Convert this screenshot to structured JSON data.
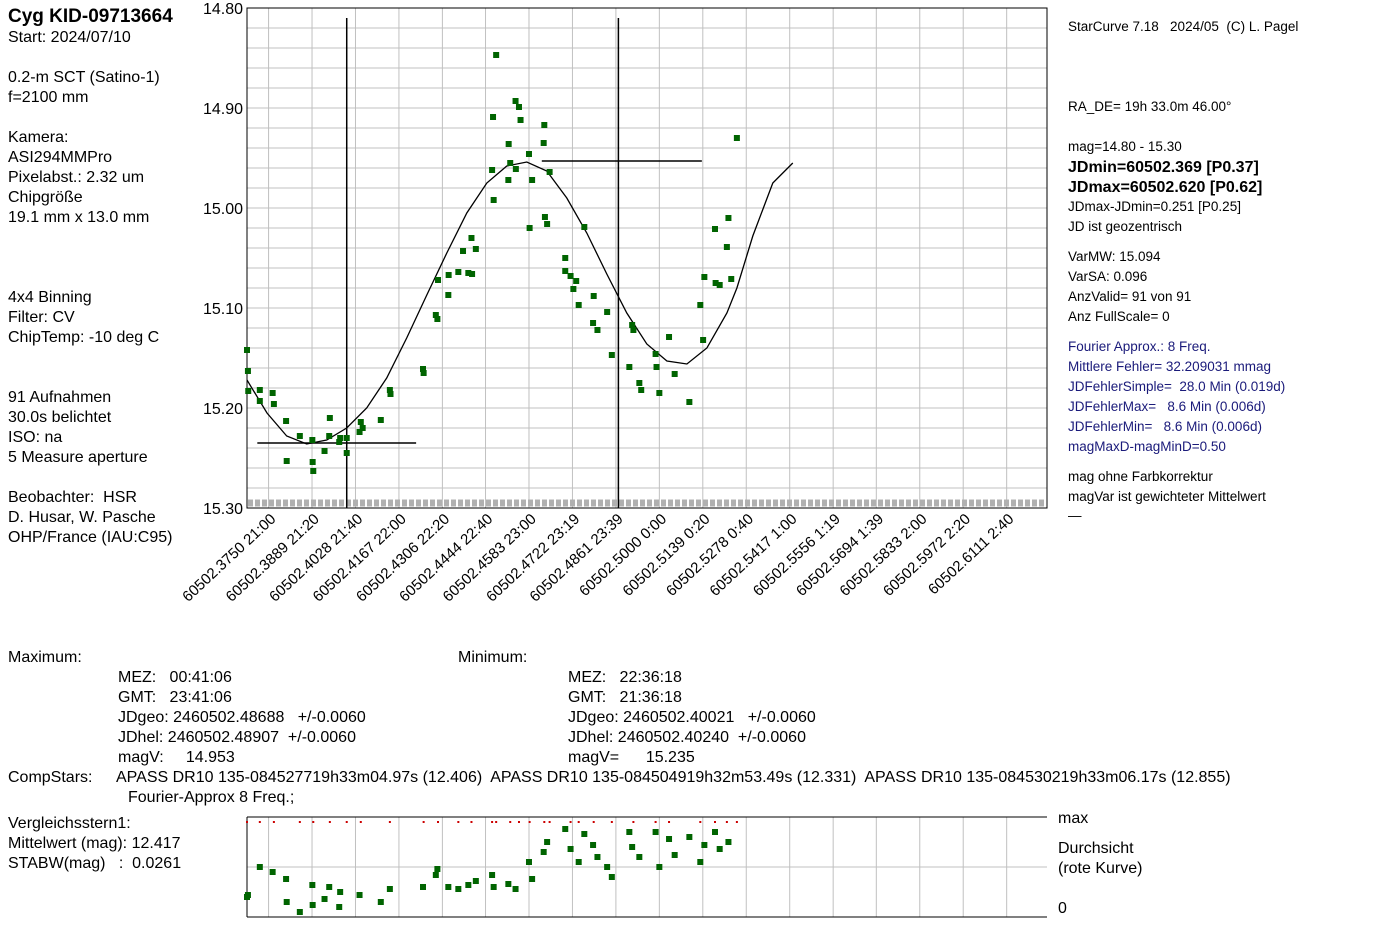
{
  "left_panel": {
    "title": "Cyg KID-09713664",
    "lines": [
      "Start: 2024/07/10",
      "",
      "0.2-m SCT (Satino-1)",
      "f=2100 mm",
      "",
      "Kamera:",
      "ASI294MMPro",
      "Pixelabst.: 2.32 um",
      "Chipgröße",
      "19.1 mm x 13.0 mm",
      "",
      "",
      "",
      "4x4 Binning",
      "Filter: CV",
      "ChipTemp: -10 deg C",
      "",
      "",
      "91 Aufnahmen",
      "30.0s belichtet",
      "ISO: na",
      "5 Measure aperture",
      "",
      "Beobachter:  HSR",
      "D. Husar, W. Pasche",
      "OHP/France (IAU:C95)"
    ]
  },
  "right_panel": {
    "header": "StarCurve 7.18   2024/05  (C) L. Pagel",
    "radec": "RA_DE= 19h 33.0m 46.00°",
    "mag_range": "mag=14.80 - 15.30",
    "jdmin": "JDmin=60502.369 [P0.37]",
    "jdmax": "JDmax=60502.620 [P0.62]",
    "jddiff": "JDmax-JDmin=0.251 [P0.25]",
    "jdgeo": "JD ist geozentrisch",
    "varmw": "VarMW: 15.094",
    "varsa": "VarSA: 0.096",
    "anzvalid": "AnzValid= 91 von 91",
    "anzfull": "Anz FullScale= 0",
    "fourier": "Fourier Approx.: 8 Freq.",
    "mittlere": "Mittlere Fehler= 32.209031 mmag",
    "jdfs": "JDFehlerSimple=  28.0 Min (0.019d)",
    "jdfmax": "JDFehlerMax=   8.6 Min (0.006d)",
    "jdfmin": "JDFehlerMin=   8.6 Min (0.006d)",
    "magmax": "magMaxD-magMinD=0.50",
    "farb": "mag ohne Farbkorrektur",
    "mag_gew": "magVar ist gewichteter Mittelwert",
    "dash": "—"
  },
  "maximum": {
    "label": "Maximum:",
    "mez": "MEZ:   00:41:06",
    "gmt": "GMT:   23:41:06",
    "jdgeo": "JDgeo: 2460502.48688   +/-0.0060",
    "jdhel": "JDhel: 2460502.48907  +/-0.0060",
    "magv": "magV:     14.953"
  },
  "minimum": {
    "label": "Minimum:",
    "mez": "MEZ:   22:36:18",
    "gmt": "GMT:   21:36:18",
    "jdgeo": "JDgeo: 2460502.40021   +/-0.0060",
    "jdhel": "JDhel: 2460502.40240  +/-0.0060",
    "magv": "magV=      15.235"
  },
  "compstars": {
    "label": "CompStars:",
    "text": "APASS DR10 135-084527719h33m04.97s (12.406)  APASS DR10 135-084504919h32m53.49s (12.331)  APASS DR10 135-084530219h33m06.17s (12.855)",
    "fourier": "Fourier-Approx 8 Freq.;"
  },
  "vergleich": {
    "line1": "Vergleichsstern1:",
    "line2": "Mittelwert (mag): 12.417",
    "line3": "STABW(mag)   :  0.0261"
  },
  "lower_labels": {
    "max": "max",
    "durchsicht": "Durchsicht",
    "rote": "(rote Kurve)",
    "zero": "0"
  },
  "colors": {
    "points": "#006400",
    "grid": "#c0c0c0",
    "red": "#cc0000"
  },
  "chart_data": {
    "type": "scatter",
    "y_inverted": true,
    "ylim": [
      14.8,
      15.3
    ],
    "xlim": [
      60502.3681,
      60502.624
    ],
    "y_ticks": [
      "14.80",
      "14.90",
      "15.00",
      "15.10",
      "15.20",
      "15.30"
    ],
    "x_tick_labels": [
      "60502.3750  21:00",
      "60502.3889  21:20",
      "60502.4028  21:40",
      "60502.4167  22:00",
      "60502.4306  22:20",
      "60502.4444  22:40",
      "60502.4583  23:00",
      "60502.4722  23:19",
      "60502.4861  23:39",
      "60502.5000   0:00",
      "60502.5139   0:20",
      "60502.5278   0:40",
      "60502.5417   1:00",
      "60502.5556   1:19",
      "60502.5694   1:39",
      "60502.5833   2:00",
      "60502.5972   2:20",
      "60502.6111   2:40"
    ],
    "x_tick_values": [
      60502.375,
      60502.3889,
      60502.4028,
      60502.4167,
      60502.4306,
      60502.4444,
      60502.4583,
      60502.4722,
      60502.4861,
      60502.5,
      60502.5139,
      60502.5278,
      60502.5417,
      60502.5556,
      60502.5694,
      60502.5833,
      60502.5972,
      60502.6111
    ],
    "extremes": {
      "min": {
        "jd": 60502.4,
        "mag": 15.235,
        "hbar": [
          60502.3714,
          60502.4222
        ]
      },
      "max": {
        "jd": 60502.4869,
        "mag": 14.953,
        "hbar": [
          60502.4624,
          60502.5136
        ]
      }
    },
    "points": [
      [
        60502.3681,
        15.142
      ],
      [
        60502.3684,
        15.163
      ],
      [
        60502.3685,
        15.183
      ],
      [
        60502.3722,
        15.182
      ],
      [
        60502.3722,
        15.193
      ],
      [
        60502.3763,
        15.185
      ],
      [
        60502.3767,
        15.196
      ],
      [
        60502.3806,
        15.213
      ],
      [
        60502.3808,
        15.253
      ],
      [
        60502.385,
        15.228
      ],
      [
        60502.389,
        15.232
      ],
      [
        60502.3891,
        15.254
      ],
      [
        60502.3893,
        15.263
      ],
      [
        60502.3929,
        15.243
      ],
      [
        60502.3944,
        15.228
      ],
      [
        60502.3946,
        15.21
      ],
      [
        60502.3976,
        15.234
      ],
      [
        60502.3979,
        15.23
      ],
      [
        60502.4,
        15.23
      ],
      [
        60502.4,
        15.245
      ],
      [
        60502.4041,
        15.224
      ],
      [
        60502.4045,
        15.214
      ],
      [
        60502.4051,
        15.22
      ],
      [
        60502.4109,
        15.212
      ],
      [
        60502.4138,
        15.182
      ],
      [
        60502.414,
        15.186
      ],
      [
        60502.4244,
        15.161
      ],
      [
        60502.4246,
        15.165
      ],
      [
        60502.4285,
        15.107
      ],
      [
        60502.429,
        15.111
      ],
      [
        60502.4292,
        15.072
      ],
      [
        60502.4325,
        15.087
      ],
      [
        60502.4326,
        15.067
      ],
      [
        60502.4357,
        15.064
      ],
      [
        60502.4372,
        15.043
      ],
      [
        60502.4389,
        15.065
      ],
      [
        60502.4399,
        15.03
      ],
      [
        60502.4401,
        15.066
      ],
      [
        60502.4413,
        15.041
      ],
      [
        60502.4465,
        14.962
      ],
      [
        60502.4468,
        14.909
      ],
      [
        60502.447,
        14.992
      ],
      [
        60502.4478,
        14.847
      ],
      [
        60502.4517,
        14.972
      ],
      [
        60502.4518,
        14.936
      ],
      [
        60502.4523,
        14.955
      ],
      [
        60502.454,
        14.893
      ],
      [
        60502.4541,
        14.961
      ],
      [
        60502.4551,
        14.899
      ],
      [
        60502.4556,
        14.912
      ],
      [
        60502.4583,
        14.946
      ],
      [
        60502.4585,
        15.02
      ],
      [
        60502.4593,
        14.972
      ],
      [
        60502.463,
        14.935
      ],
      [
        60502.4632,
        14.917
      ],
      [
        60502.4634,
        15.009
      ],
      [
        60502.4641,
        15.016
      ],
      [
        60502.4649,
        14.964
      ],
      [
        60502.4699,
        15.05
      ],
      [
        60502.4699,
        15.063
      ],
      [
        60502.4716,
        15.068
      ],
      [
        60502.4725,
        15.081
      ],
      [
        60502.4734,
        15.073
      ],
      [
        60502.4742,
        15.097
      ],
      [
        60502.476,
        15.019
      ],
      [
        60502.4788,
        15.115
      ],
      [
        60502.479,
        15.088
      ],
      [
        60502.4802,
        15.122
      ],
      [
        60502.4833,
        15.104
      ],
      [
        60502.4848,
        15.147
      ],
      [
        60502.4904,
        15.159
      ],
      [
        60502.4913,
        15.117
      ],
      [
        60502.4917,
        15.122
      ],
      [
        60502.4936,
        15.175
      ],
      [
        60502.4942,
        15.182
      ],
      [
        60502.4988,
        15.146
      ],
      [
        60502.4991,
        15.159
      ],
      [
        60502.5,
        15.185
      ],
      [
        60502.5031,
        15.129
      ],
      [
        60502.5049,
        15.166
      ],
      [
        60502.5096,
        15.194
      ],
      [
        60502.5131,
        15.097
      ],
      [
        60502.514,
        15.132
      ],
      [
        60502.5144,
        15.069
      ],
      [
        60502.5178,
        15.021
      ],
      [
        60502.518,
        15.075
      ],
      [
        60502.5193,
        15.077
      ],
      [
        60502.5216,
        15.039
      ],
      [
        60502.5221,
        15.01
      ],
      [
        60502.523,
        15.071
      ],
      [
        60502.5248,
        14.93
      ]
    ],
    "curve_points": [
      [
        60502.3681,
        15.172
      ],
      [
        60502.3745,
        15.205
      ],
      [
        60502.3808,
        15.228
      ],
      [
        60502.3872,
        15.236
      ],
      [
        60502.3936,
        15.232
      ],
      [
        60502.4,
        15.22
      ],
      [
        60502.4064,
        15.2
      ],
      [
        60502.4128,
        15.17
      ],
      [
        60502.4192,
        15.13
      ],
      [
        60502.4256,
        15.087
      ],
      [
        60502.432,
        15.045
      ],
      [
        60502.4384,
        15.005
      ],
      [
        60502.4448,
        14.975
      ],
      [
        60502.4512,
        14.958
      ],
      [
        60502.4576,
        14.954
      ],
      [
        60502.464,
        14.963
      ],
      [
        60502.4704,
        14.99
      ],
      [
        60502.4768,
        15.025
      ],
      [
        60502.4832,
        15.066
      ],
      [
        60502.4896,
        15.105
      ],
      [
        60502.496,
        15.136
      ],
      [
        60502.5024,
        15.153
      ],
      [
        60502.5088,
        15.156
      ],
      [
        60502.5152,
        15.14
      ],
      [
        60502.5216,
        15.105
      ],
      [
        60502.5248,
        15.08
      ],
      [
        60502.5299,
        15.028
      ],
      [
        60502.5363,
        14.975
      ],
      [
        60502.5427,
        14.955
      ]
    ],
    "comparison_points": [
      [
        60502.3681,
        0.2
      ],
      [
        60502.3684,
        0.22
      ],
      [
        60502.3722,
        0.5
      ],
      [
        60502.3763,
        0.45
      ],
      [
        60502.3806,
        0.38
      ],
      [
        60502.3808,
        0.15
      ],
      [
        60502.385,
        0.05
      ],
      [
        60502.389,
        0.32
      ],
      [
        60502.3891,
        0.12
      ],
      [
        60502.3929,
        0.18
      ],
      [
        60502.3944,
        0.3
      ],
      [
        60502.3976,
        0.1
      ],
      [
        60502.3979,
        0.25
      ],
      [
        60502.4041,
        0.22
      ],
      [
        60502.4109,
        0.15
      ],
      [
        60502.4138,
        0.28
      ],
      [
        60502.4244,
        0.3
      ],
      [
        60502.4285,
        0.42
      ],
      [
        60502.429,
        0.48
      ],
      [
        60502.4325,
        0.3
      ],
      [
        60502.4357,
        0.28
      ],
      [
        60502.4389,
        0.32
      ],
      [
        60502.4413,
        0.36
      ],
      [
        60502.4465,
        0.42
      ],
      [
        60502.447,
        0.3
      ],
      [
        60502.4517,
        0.33
      ],
      [
        60502.454,
        0.28
      ],
      [
        60502.4583,
        0.55
      ],
      [
        60502.4593,
        0.38
      ],
      [
        60502.463,
        0.65
      ],
      [
        60502.4641,
        0.75
      ],
      [
        60502.4699,
        0.88
      ],
      [
        60502.4716,
        0.68
      ],
      [
        60502.4742,
        0.55
      ],
      [
        60502.476,
        0.83
      ],
      [
        60502.4788,
        0.72
      ],
      [
        60502.4802,
        0.6
      ],
      [
        60502.4833,
        0.5
      ],
      [
        60502.4848,
        0.4
      ],
      [
        60502.4904,
        0.85
      ],
      [
        60502.4913,
        0.7
      ],
      [
        60502.4936,
        0.6
      ],
      [
        60502.4988,
        0.85
      ],
      [
        60502.5,
        0.5
      ],
      [
        60502.5031,
        0.78
      ],
      [
        60502.5049,
        0.62
      ],
      [
        60502.5096,
        0.8
      ],
      [
        60502.5131,
        0.55
      ],
      [
        60502.5144,
        0.72
      ],
      [
        60502.5178,
        0.85
      ],
      [
        60502.5193,
        0.68
      ],
      [
        60502.5221,
        0.75
      ]
    ],
    "red_curve_y": 0.95
  }
}
